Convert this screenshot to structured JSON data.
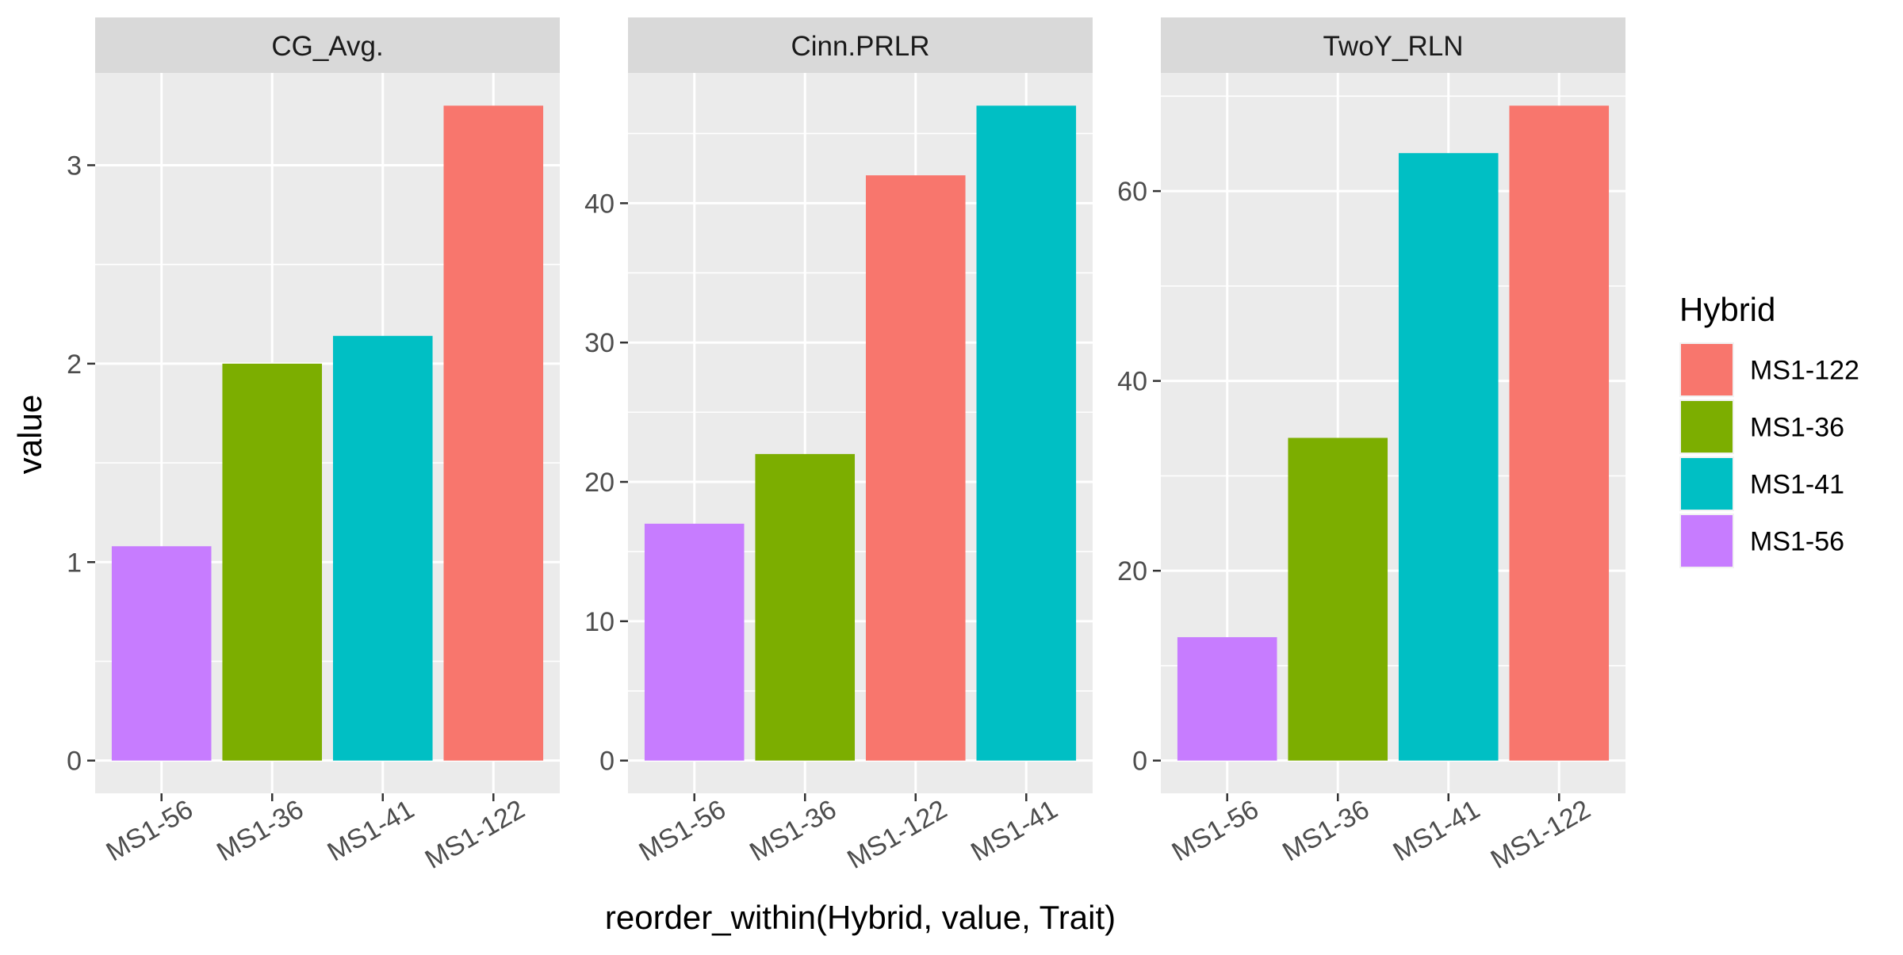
{
  "chart_data": {
    "type": "bar",
    "xlabel": "reorder_within(Hybrid, value, Trait)",
    "ylabel": "value",
    "legend": {
      "title": "Hybrid",
      "position": "right",
      "entries": [
        {
          "name": "MS1-122",
          "color": "#F8766D"
        },
        {
          "name": "MS1-36",
          "color": "#7CAE00"
        },
        {
          "name": "MS1-41",
          "color": "#00BFC4"
        },
        {
          "name": "MS1-56",
          "color": "#C77CFF"
        }
      ]
    },
    "grid": true,
    "panels": [
      {
        "title": "CG_Avg.",
        "categories": [
          "MS1-56",
          "MS1-36",
          "MS1-41",
          "MS1-122"
        ],
        "values": [
          1.08,
          2.0,
          2.14,
          3.3
        ],
        "ylim": [
          -0.165,
          3.465
        ],
        "yticks": [
          0,
          1,
          2,
          3
        ],
        "yticklabels": [
          "0",
          "1",
          "2",
          "3"
        ]
      },
      {
        "title": "Cinn.PRLR",
        "categories": [
          "MS1-56",
          "MS1-36",
          "MS1-122",
          "MS1-41"
        ],
        "values": [
          17,
          22,
          42,
          47
        ],
        "ylim": [
          -2.35,
          49.35
        ],
        "yticks": [
          0,
          10,
          20,
          30,
          40
        ],
        "yticklabels": [
          "0",
          "10",
          "20",
          "30",
          "40"
        ]
      },
      {
        "title": "TwoY_RLN",
        "categories": [
          "MS1-56",
          "MS1-36",
          "MS1-41",
          "MS1-122"
        ],
        "values": [
          13,
          34,
          64,
          69
        ],
        "ylim": [
          -3.45,
          72.45
        ],
        "yticks": [
          0,
          20,
          40,
          60
        ],
        "yticklabels": [
          "0",
          "20",
          "40",
          "60"
        ]
      }
    ]
  }
}
